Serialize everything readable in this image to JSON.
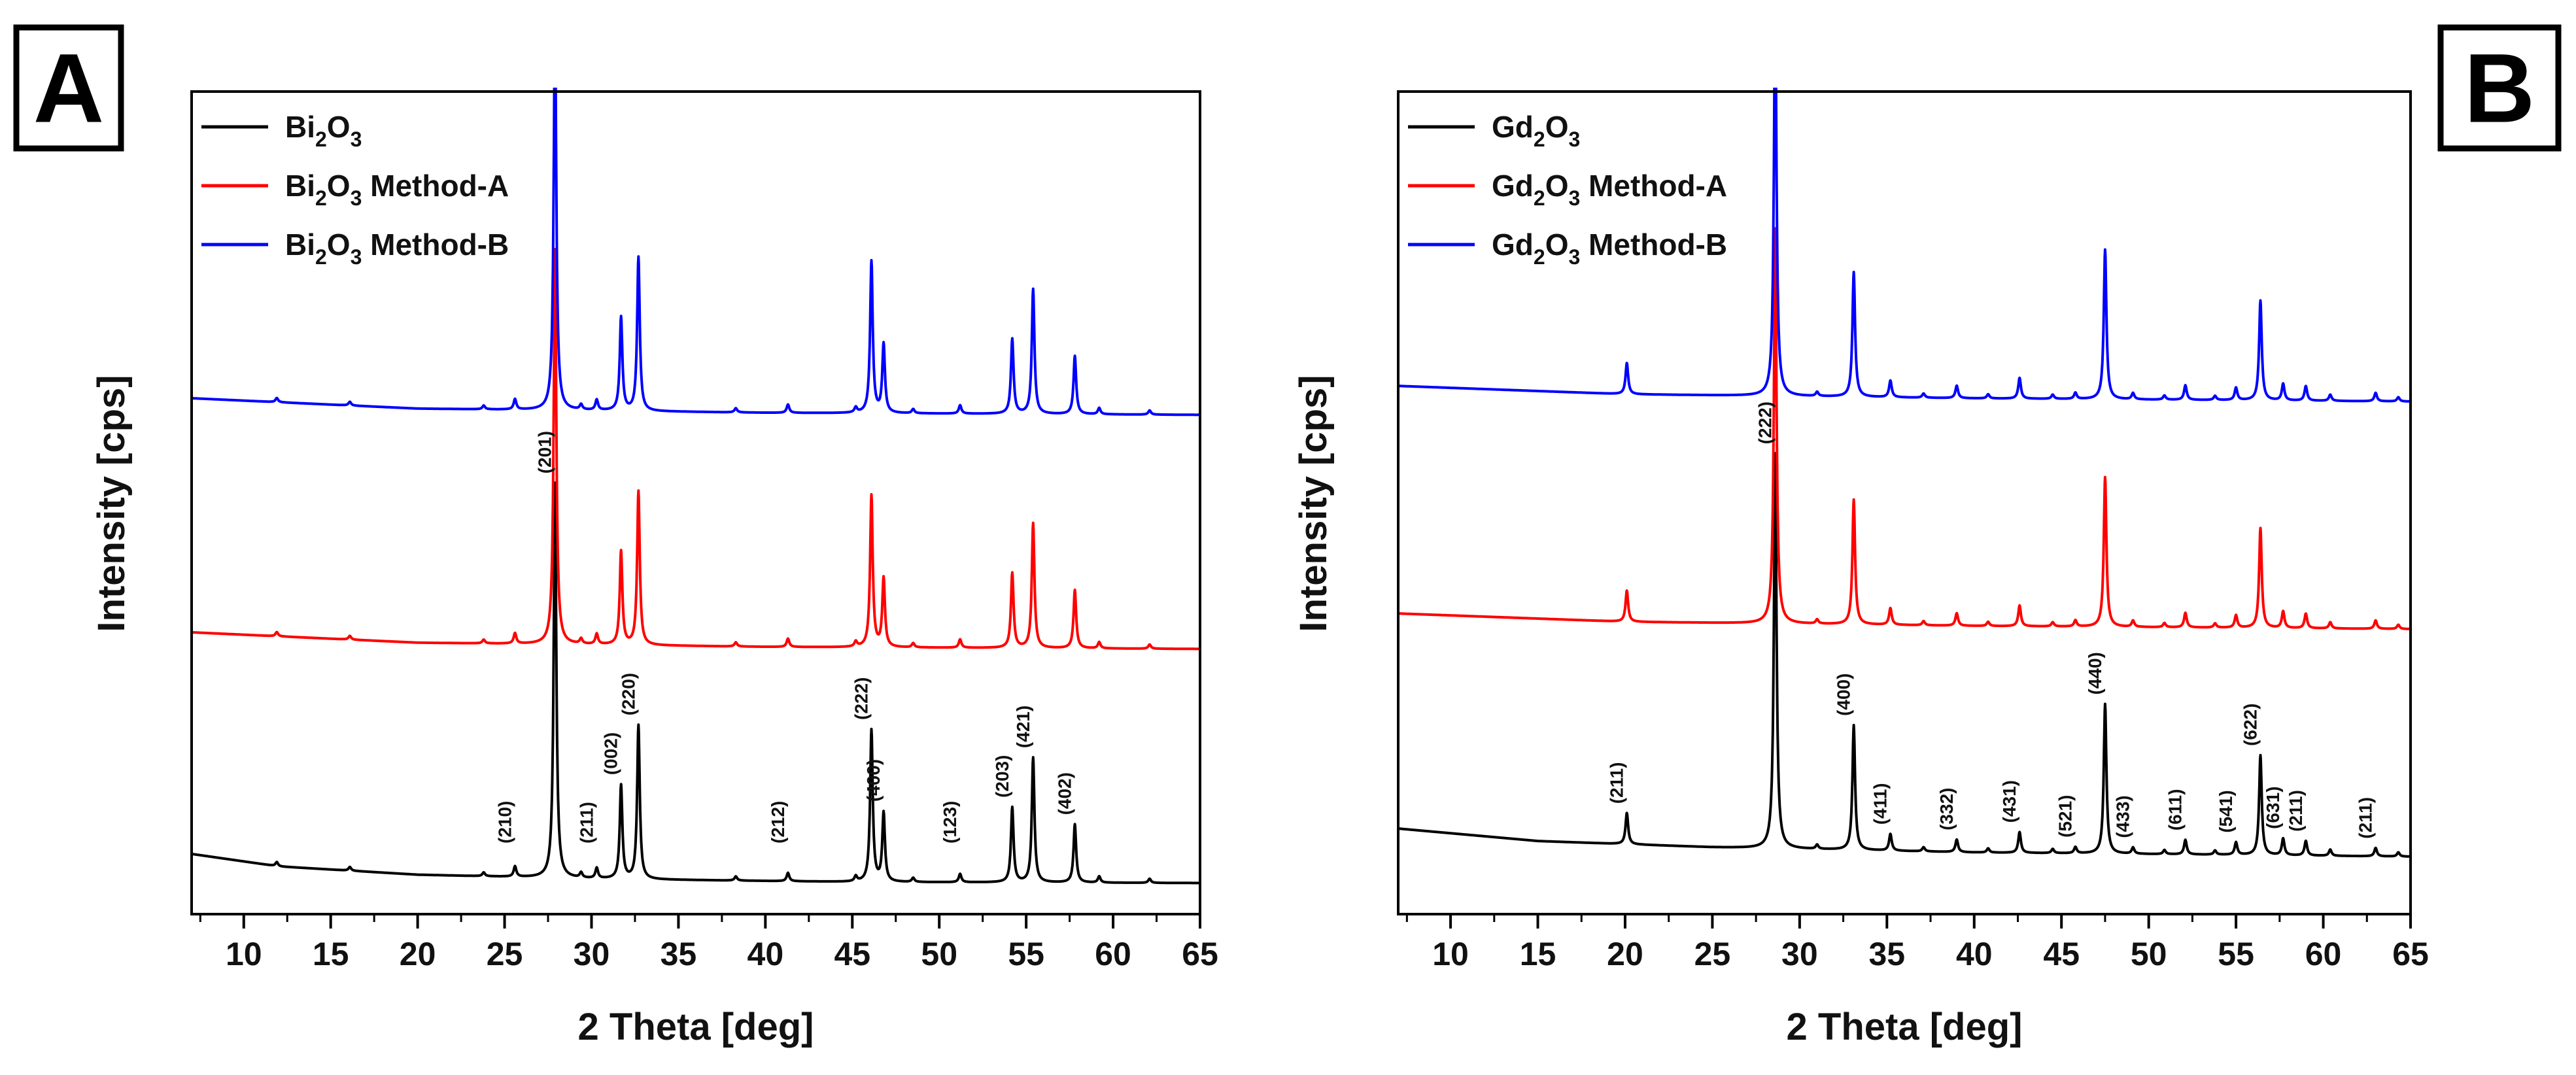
{
  "chart_data": [
    {
      "type": "line",
      "panel_label": "A",
      "xlabel": "2 Theta [deg]",
      "ylabel": "Intensity [cps]",
      "xlim": [
        7,
        65
      ],
      "xticks": [
        10,
        15,
        20,
        25,
        30,
        35,
        40,
        45,
        50,
        55,
        60,
        65
      ],
      "yticks": [],
      "legend_position": "top-left",
      "series": [
        {
          "name": "Bi2O3",
          "legend": {
            "pre": "Bi",
            "s1": "2",
            "mid": "O",
            "s2": "3",
            "post": ""
          },
          "color": "#000000",
          "offset": 0,
          "baseline": [
            [
              7,
              0.17
            ],
            [
              12,
              0.11
            ],
            [
              20,
              0.07
            ],
            [
              30,
              0.05
            ],
            [
              45,
              0.035
            ],
            [
              65,
              0.03
            ]
          ],
          "peaks": [
            [
              11.9,
              0.02
            ],
            [
              16.1,
              0.018
            ],
            [
              23.8,
              0.018
            ],
            [
              25.6,
              0.05
            ],
            [
              27.9,
              1.9
            ],
            [
              29.4,
              0.025
            ],
            [
              30.3,
              0.05
            ],
            [
              31.7,
              0.45
            ],
            [
              32.7,
              0.74
            ],
            [
              38.3,
              0.02
            ],
            [
              41.3,
              0.04
            ],
            [
              45.2,
              0.025
            ],
            [
              46.1,
              0.73
            ],
            [
              46.8,
              0.33
            ],
            [
              48.5,
              0.02
            ],
            [
              51.2,
              0.04
            ],
            [
              54.2,
              0.36
            ],
            [
              55.4,
              0.6
            ],
            [
              57.8,
              0.28
            ],
            [
              59.2,
              0.03
            ],
            [
              62.1,
              0.02
            ]
          ]
        },
        {
          "name": "Bi2O3 Method-A",
          "legend": {
            "pre": "Bi",
            "s1": "2",
            "mid": "O",
            "s2": "3",
            "post": " Method-A"
          },
          "color": "#ff0000",
          "offset": 1,
          "baseline": [
            [
              7,
              0.11
            ],
            [
              20,
              0.06
            ],
            [
              40,
              0.04
            ],
            [
              65,
              0.03
            ]
          ],
          "peaks": [
            [
              11.9,
              0.02
            ],
            [
              16.1,
              0.018
            ],
            [
              23.8,
              0.018
            ],
            [
              25.6,
              0.05
            ],
            [
              27.9,
              1.9
            ],
            [
              29.4,
              0.025
            ],
            [
              30.3,
              0.05
            ],
            [
              31.7,
              0.45
            ],
            [
              32.7,
              0.74
            ],
            [
              38.3,
              0.02
            ],
            [
              41.3,
              0.04
            ],
            [
              45.2,
              0.025
            ],
            [
              46.1,
              0.73
            ],
            [
              46.8,
              0.33
            ],
            [
              48.5,
              0.02
            ],
            [
              51.2,
              0.04
            ],
            [
              54.2,
              0.36
            ],
            [
              55.4,
              0.6
            ],
            [
              57.8,
              0.28
            ],
            [
              59.2,
              0.03
            ],
            [
              62.1,
              0.02
            ]
          ]
        },
        {
          "name": "Bi2O3 Method-B",
          "legend": {
            "pre": "Bi",
            "s1": "2",
            "mid": "O",
            "s2": "3",
            "post": " Method-B"
          },
          "color": "#0000ff",
          "offset": 2,
          "baseline": [
            [
              7,
              0.11
            ],
            [
              20,
              0.06
            ],
            [
              40,
              0.04
            ],
            [
              65,
              0.03
            ]
          ],
          "peaks": [
            [
              11.9,
              0.02
            ],
            [
              16.1,
              0.018
            ],
            [
              23.8,
              0.018
            ],
            [
              25.6,
              0.05
            ],
            [
              27.9,
              1.9
            ],
            [
              29.4,
              0.025
            ],
            [
              30.3,
              0.05
            ],
            [
              31.7,
              0.45
            ],
            [
              32.7,
              0.74
            ],
            [
              38.3,
              0.02
            ],
            [
              41.3,
              0.04
            ],
            [
              45.2,
              0.025
            ],
            [
              46.1,
              0.73
            ],
            [
              46.8,
              0.33
            ],
            [
              48.5,
              0.02
            ],
            [
              51.2,
              0.04
            ],
            [
              54.2,
              0.36
            ],
            [
              55.4,
              0.6
            ],
            [
              57.8,
              0.28
            ],
            [
              59.2,
              0.03
            ],
            [
              62.1,
              0.02
            ]
          ]
        }
      ],
      "annotations": [
        {
          "text": "(210)",
          "x": 25.6
        },
        {
          "text": "(201)",
          "x": 27.9
        },
        {
          "text": "(211)",
          "x": 30.3
        },
        {
          "text": "(002)",
          "x": 31.7
        },
        {
          "text": "(220)",
          "x": 32.7
        },
        {
          "text": "(212)",
          "x": 41.3
        },
        {
          "text": "(222)",
          "x": 46.1
        },
        {
          "text": "(400)",
          "x": 46.8
        },
        {
          "text": "(123)",
          "x": 51.2
        },
        {
          "text": "(203)",
          "x": 54.2
        },
        {
          "text": "(421)",
          "x": 55.4
        },
        {
          "text": "(402)",
          "x": 57.8
        }
      ]
    },
    {
      "type": "line",
      "panel_label": "B",
      "xlabel": "2 Theta [deg]",
      "ylabel": "Intensity [cps]",
      "xlim": [
        7,
        65
      ],
      "xticks": [
        10,
        15,
        20,
        25,
        30,
        35,
        40,
        45,
        50,
        55,
        60,
        65
      ],
      "yticks": [],
      "legend_position": "top-left",
      "series": [
        {
          "name": "Gd2O3",
          "legend": {
            "pre": "Gd",
            "s1": "2",
            "mid": "O",
            "s2": "3",
            "post": ""
          },
          "color": "#000000",
          "offset": 0,
          "baseline": [
            [
              7,
              0.16
            ],
            [
              15,
              0.1
            ],
            [
              25,
              0.07
            ],
            [
              40,
              0.045
            ],
            [
              65,
              0.025
            ]
          ],
          "peaks": [
            [
              20.1,
              0.15
            ],
            [
              28.6,
              1.9
            ],
            [
              31.0,
              0.02
            ],
            [
              33.1,
              0.6
            ],
            [
              35.2,
              0.08
            ],
            [
              37.1,
              0.02
            ],
            [
              39.0,
              0.06
            ],
            [
              40.8,
              0.02
            ],
            [
              42.6,
              0.1
            ],
            [
              44.5,
              0.02
            ],
            [
              45.8,
              0.03
            ],
            [
              47.5,
              0.72
            ],
            [
              49.1,
              0.03
            ],
            [
              50.9,
              0.02
            ],
            [
              52.1,
              0.07
            ],
            [
              53.8,
              0.02
            ],
            [
              55.0,
              0.06
            ],
            [
              56.4,
              0.48
            ],
            [
              57.7,
              0.08
            ],
            [
              59.0,
              0.07
            ],
            [
              60.4,
              0.03
            ],
            [
              63.0,
              0.04
            ],
            [
              64.3,
              0.02
            ]
          ]
        },
        {
          "name": "Gd2O3 Method-A",
          "legend": {
            "pre": "Gd",
            "s1": "2",
            "mid": "O",
            "s2": "3",
            "post": " Method-A"
          },
          "color": "#ff0000",
          "offset": 1,
          "baseline": [
            [
              7,
              0.1
            ],
            [
              20,
              0.06
            ],
            [
              40,
              0.04
            ],
            [
              65,
              0.025
            ]
          ],
          "peaks": [
            [
              20.1,
              0.15
            ],
            [
              28.6,
              1.9
            ],
            [
              31.0,
              0.02
            ],
            [
              33.1,
              0.6
            ],
            [
              35.2,
              0.08
            ],
            [
              37.1,
              0.02
            ],
            [
              39.0,
              0.06
            ],
            [
              40.8,
              0.02
            ],
            [
              42.6,
              0.1
            ],
            [
              44.5,
              0.02
            ],
            [
              45.8,
              0.03
            ],
            [
              47.5,
              0.72
            ],
            [
              49.1,
              0.03
            ],
            [
              50.9,
              0.02
            ],
            [
              52.1,
              0.07
            ],
            [
              53.8,
              0.02
            ],
            [
              55.0,
              0.06
            ],
            [
              56.4,
              0.48
            ],
            [
              57.7,
              0.08
            ],
            [
              59.0,
              0.07
            ],
            [
              60.4,
              0.03
            ],
            [
              63.0,
              0.04
            ],
            [
              64.3,
              0.02
            ]
          ]
        },
        {
          "name": "Gd2O3 Method-B",
          "legend": {
            "pre": "Gd",
            "s1": "2",
            "mid": "O",
            "s2": "3",
            "post": " Method-B"
          },
          "color": "#0000ff",
          "offset": 2,
          "baseline": [
            [
              7,
              0.1
            ],
            [
              20,
              0.06
            ],
            [
              40,
              0.04
            ],
            [
              65,
              0.025
            ]
          ],
          "peaks": [
            [
              20.1,
              0.15
            ],
            [
              28.6,
              1.9
            ],
            [
              31.0,
              0.02
            ],
            [
              33.1,
              0.6
            ],
            [
              35.2,
              0.08
            ],
            [
              37.1,
              0.02
            ],
            [
              39.0,
              0.06
            ],
            [
              40.8,
              0.02
            ],
            [
              42.6,
              0.1
            ],
            [
              44.5,
              0.02
            ],
            [
              45.8,
              0.03
            ],
            [
              47.5,
              0.72
            ],
            [
              49.1,
              0.03
            ],
            [
              50.9,
              0.02
            ],
            [
              52.1,
              0.07
            ],
            [
              53.8,
              0.02
            ],
            [
              55.0,
              0.06
            ],
            [
              56.4,
              0.48
            ],
            [
              57.7,
              0.08
            ],
            [
              59.0,
              0.07
            ],
            [
              60.4,
              0.03
            ],
            [
              63.0,
              0.04
            ],
            [
              64.3,
              0.02
            ]
          ]
        }
      ],
      "annotations": [
        {
          "text": "(211)",
          "x": 20.1
        },
        {
          "text": "(222)",
          "x": 28.6
        },
        {
          "text": "(400)",
          "x": 33.1
        },
        {
          "text": "(411)",
          "x": 35.2
        },
        {
          "text": "(332)",
          "x": 39.0
        },
        {
          "text": "(431)",
          "x": 42.6
        },
        {
          "text": "(521)",
          "x": 45.8
        },
        {
          "text": "(440)",
          "x": 47.5
        },
        {
          "text": "(433)",
          "x": 49.1
        },
        {
          "text": "(611)",
          "x": 52.1
        },
        {
          "text": "(541)",
          "x": 55.0
        },
        {
          "text": "(622)",
          "x": 56.4
        },
        {
          "text": "(631)",
          "x": 57.7
        },
        {
          "text": "(211)",
          "x": 59.0
        },
        {
          "text": "(211)",
          "x": 63.0
        }
      ]
    }
  ]
}
